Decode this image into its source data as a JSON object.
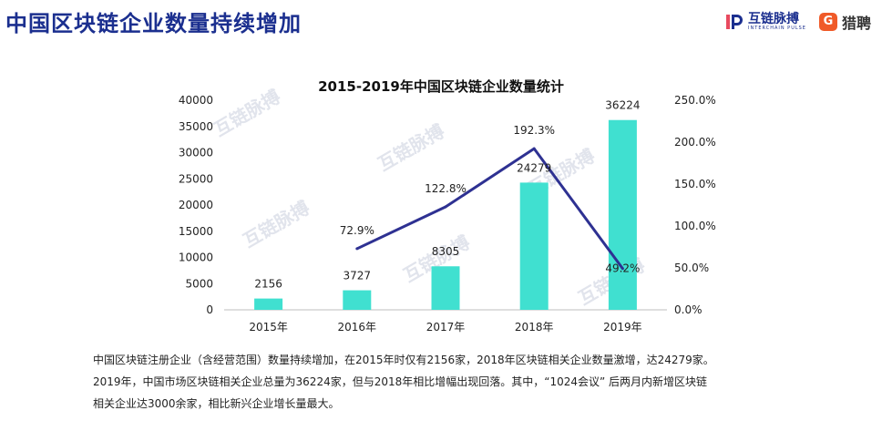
{
  "page_title": "中国区块链企业数量持续增加",
  "logos": {
    "brand1": {
      "name": "互链脉搏",
      "sub": "INTERCHAIN PULSE",
      "icon": "ip-logo-icon"
    },
    "brand2": {
      "name": "猎聘",
      "icon": "liepin-logo-icon",
      "mark": "G"
    }
  },
  "watermark": "互链脉搏",
  "caption": {
    "line1": "中国区块链注册企业（含经营范围）数量持续增加，在2015年时仅有2156家，2018年区块链相关企业数量激增，达24279家。",
    "line2": "2019年，中国市场区块链相关企业总量为36224家，但与2018年相比增幅出现回落。其中，“1024会议” 后两月内新增区块链",
    "line3": "相关企业达3000余家，相比新兴企业增长量最大。"
  },
  "chart_data": {
    "type": "bar",
    "title": "2015-2019年中国区块链企业数量统计",
    "categories": [
      "2015年",
      "2016年",
      "2017年",
      "2018年",
      "2019年"
    ],
    "series": [
      {
        "type": "bar",
        "axis": "left",
        "values": [
          2156,
          3727,
          8305,
          24279,
          36224
        ],
        "labels": [
          "2156",
          "3727",
          "8305",
          "24279",
          "36224"
        ],
        "color": "#40e0d0"
      },
      {
        "type": "line",
        "axis": "right",
        "values": [
          null,
          72.9,
          122.8,
          192.3,
          49.2
        ],
        "labels": [
          "",
          "72.9%",
          "122.8%",
          "192.3%",
          "49.2%"
        ],
        "color": "#2e3192"
      }
    ],
    "ylim": [
      0,
      40000
    ],
    "y_ticks": [
      "0",
      "5000",
      "10000",
      "15000",
      "20000",
      "25000",
      "30000",
      "35000",
      "40000"
    ],
    "y2lim": [
      0,
      250
    ],
    "y2_ticks": [
      "0.0%",
      "50.0%",
      "100.0%",
      "150.0%",
      "200.0%",
      "250.0%"
    ],
    "grid": false,
    "legend": "none"
  }
}
